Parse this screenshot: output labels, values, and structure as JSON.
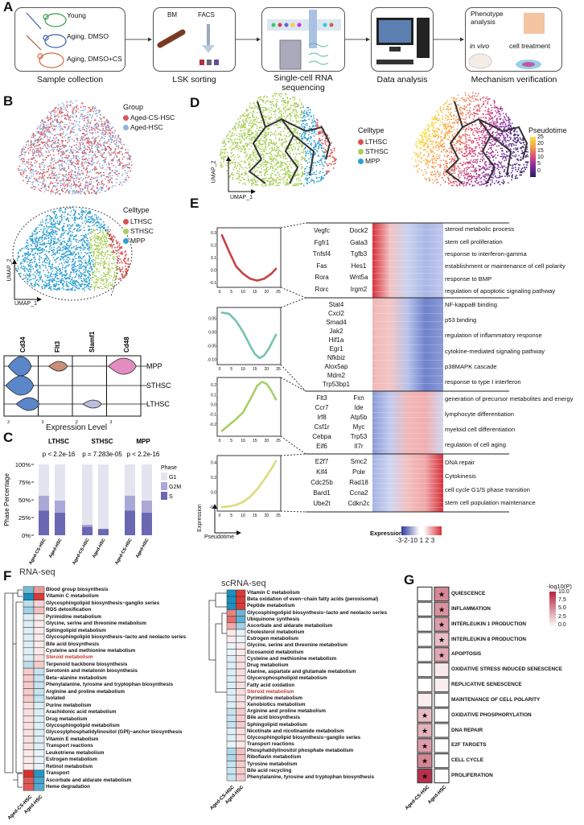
{
  "panel_labels": {
    "A": "A",
    "B": "B",
    "C": "C",
    "D": "D",
    "E": "E",
    "F": "F",
    "G": "G"
  },
  "workflow": {
    "steps": [
      {
        "label": "Sample collection",
        "groups": [
          "Young",
          "Aging, DMSO",
          "Aging, DMSO+CS"
        ]
      },
      {
        "label": "LSK sorting",
        "tags": [
          "BM",
          "FACS"
        ]
      },
      {
        "label": "Single-cell RNA sequencing"
      },
      {
        "label": "Data analysis"
      },
      {
        "label": "Mechanism verification",
        "tags": [
          "Phenotype analysis",
          "in vivo",
          "cell treatment"
        ]
      }
    ]
  },
  "umap_group": {
    "legend_title": "Group",
    "items": [
      {
        "label": "Aged-CS-HSC",
        "color": "#d9585b"
      },
      {
        "label": "Aged-HSC",
        "color": "#8fb2e0"
      }
    ],
    "xlabel": "UMAP_1",
    "ylabel": "UMAP_2"
  },
  "umap_celltype": {
    "legend_title": "Celltype",
    "items": [
      {
        "label": "LTHSC",
        "color": "#d9534f"
      },
      {
        "label": "STHSC",
        "color": "#a9cf5a"
      },
      {
        "label": "MPP",
        "color": "#2e9fd0"
      }
    ],
    "xlabel": "UMAP_1",
    "ylabel": "UMAP_2"
  },
  "violin": {
    "genes": [
      "Cd34",
      "Flt3",
      "Slamf1",
      "Cd48"
    ],
    "celltypes": [
      "MPP",
      "STHSC",
      "LTHSC"
    ],
    "tick_labels": [
      "3",
      "3",
      "2",
      "3"
    ],
    "xlabel": "Expression Level",
    "colors": [
      "#5b86c9",
      "#c98f7a",
      "#b9bfdc",
      "#e38cbf"
    ]
  },
  "trajectory": {
    "celltype_legend_title": "Celltype",
    "celltypes": [
      {
        "label": "LTHSC",
        "color": "#d9534f"
      },
      {
        "label": "STHSC",
        "color": "#a9cf5a"
      },
      {
        "label": "MPP",
        "color": "#2e9fd0"
      }
    ],
    "pseudotime_title": "Pseudotime",
    "pseudotime_ticks": [
      "25",
      "20",
      "15",
      "10",
      "5",
      "0"
    ],
    "xlabel": "UMAP_1",
    "ylabel": "UMAP_2"
  },
  "trajectory_heatmap": {
    "clusters": [
      {
        "genes": [
          "Vegfc",
          "Dock2",
          "Fgfr1",
          "Gata3",
          "Tnfsf4",
          "Tgfb3",
          "Fas",
          "Hes1",
          "Rora",
          "Wnt5a",
          "Rorc",
          "Irgm2"
        ],
        "columns": 2,
        "terms": [
          "steroid metabolic process",
          "stem cell proliferation",
          "response to interferon-gamma",
          "establishment or maintenance of cell polarity",
          "response to BMP",
          "regulation of apoptotic signaling pathway"
        ]
      },
      {
        "genes": [
          "Stat4",
          "Cxcl2",
          "Smad4",
          "Jak2",
          "Hif1a",
          "Egr1",
          "Nfkbiz",
          "Alox5ap",
          "Mdm2",
          "Trp53bp1"
        ],
        "columns": 1,
        "terms": [
          "NF-kappaB binding",
          "p53 binding",
          "regulation of inflammatory response",
          "cytokine-mediated signaling pathway",
          "p38MAPK cascade",
          "response to type I interferon"
        ]
      },
      {
        "genes": [
          "Flt3",
          "Fxn",
          "Ccr7",
          "Ide",
          "Irf8",
          "Atp5b",
          "Csf1r",
          "Myc",
          "Cebpa",
          "Trp53",
          "Eif6",
          "Il7r"
        ],
        "columns": 2,
        "terms": [
          "generation of precursor metabolites and energy",
          "lymphocyte differentiation",
          "myeloid cell differentiation",
          "regulation of cell aging"
        ]
      },
      {
        "genes": [
          "E2f7",
          "Smc2",
          "Kif4",
          "Pole",
          "Cdc25b",
          "Rad18",
          "Bard1",
          "Ccna2",
          "Ube2t",
          "Cdkn2c"
        ],
        "columns": 2,
        "terms": [
          "DNA repair",
          "Cytokinesis",
          "cell cycle G1/S phase transition",
          "stem cell population maintenance"
        ]
      }
    ],
    "colorbar": {
      "title": "Expression",
      "labels": "-3-2-10 1 2 3",
      "low": "#2b3a9c",
      "mid": "#ffffff",
      "high": "#d7303a"
    },
    "xlabel": "Pseudotime",
    "ylabel": "Expression"
  },
  "chart_data": [
    {
      "id": "C",
      "type": "bar",
      "stacked": true,
      "ylabel": "Phase Percentage",
      "ylim": [
        0,
        100
      ],
      "yticks": [
        "0%",
        "25%",
        "50%",
        "75%",
        "100%"
      ],
      "facets": [
        {
          "title": "LTHSC",
          "pvalue": "p < 2.2e-16"
        },
        {
          "title": "STHSC",
          "pvalue": "p = 7.283e-05"
        },
        {
          "title": "MPP",
          "pvalue": "p < 2.2e-16"
        }
      ],
      "categories": [
        "Aged-CS-HSC",
        "Aged-HSC"
      ],
      "legend_title": "Phase",
      "series": [
        {
          "name": "S",
          "color": "#6a68b3",
          "values": [
            [
              35,
              32
            ],
            [
              12,
              9
            ],
            [
              35,
              32
            ]
          ]
        },
        {
          "name": "G2M",
          "color": "#a9a8d6",
          "values": [
            [
              21,
              17
            ],
            [
              3,
              0
            ],
            [
              21,
              17
            ]
          ]
        },
        {
          "name": "G1",
          "color": "#e4e4f1",
          "values": [
            [
              44,
              51
            ],
            [
              85,
              91
            ],
            [
              44,
              51
            ]
          ]
        }
      ]
    },
    {
      "id": "E1",
      "type": "line",
      "color": "#c9413e",
      "xlim": [
        0,
        25
      ],
      "xticks": [
        "0",
        "5",
        "10",
        "15",
        "20",
        "25"
      ],
      "ylim": [
        -0.12,
        0.32
      ],
      "yticks": [
        "-0.1",
        "0.0",
        "0.1",
        "0.2",
        "0.3"
      ],
      "x": [
        1,
        4,
        7,
        10,
        13,
        16,
        19,
        22,
        24
      ],
      "y": [
        0.28,
        0.15,
        0.03,
        -0.03,
        -0.07,
        -0.085,
        -0.07,
        -0.03,
        0.01
      ]
    },
    {
      "id": "E2",
      "type": "line",
      "color": "#76c2b0",
      "xlim": [
        0,
        25
      ],
      "xticks": [
        "0",
        "5",
        "10",
        "15",
        "20",
        "25"
      ],
      "ylim": [
        -0.11,
        0.08
      ],
      "yticks": [
        "-0.10",
        "-0.05",
        "0.00",
        "0.05"
      ],
      "x": [
        1,
        4,
        7,
        10,
        13,
        15,
        17,
        19,
        21,
        24
      ],
      "y": [
        0.07,
        0.066,
        0.04,
        0.0,
        -0.05,
        -0.08,
        -0.095,
        -0.085,
        -0.06,
        -0.01
      ]
    },
    {
      "id": "E3",
      "type": "line",
      "color": "#a6cf67",
      "xlim": [
        0,
        25
      ],
      "xticks": [
        "0",
        "5",
        "10",
        "15",
        "20",
        "25"
      ],
      "ylim": [
        -0.3,
        0.25
      ],
      "yticks": [
        "-0.2",
        "-0.1",
        "0.0",
        "0.1",
        "0.2"
      ],
      "x": [
        1,
        4,
        7,
        10,
        13,
        16,
        18,
        20,
        22,
        24
      ],
      "y": [
        -0.27,
        -0.21,
        -0.15,
        -0.08,
        0.05,
        0.19,
        0.23,
        0.21,
        0.14,
        0.05
      ]
    },
    {
      "id": "E4",
      "type": "line",
      "color": "#dcdc7a",
      "xlim": [
        0,
        25
      ],
      "xticks": [
        "0",
        "5",
        "10",
        "15",
        "20",
        "25"
      ],
      "ylim": [
        -0.22,
        0.46
      ],
      "yticks": [
        "-0.2",
        "0.0",
        "0.2",
        "0.4"
      ],
      "x": [
        1,
        4,
        7,
        10,
        13,
        16,
        19,
        22,
        24
      ],
      "y": [
        -0.2,
        -0.19,
        -0.17,
        -0.13,
        -0.06,
        0.04,
        0.17,
        0.31,
        0.42
      ]
    },
    {
      "id": "F1",
      "type": "heatmap",
      "title": "RNA-seq",
      "columns": [
        "Aged-CS-HSC",
        "Aged-HSC"
      ],
      "scale": {
        "low": "#1b8fbf",
        "mid": "#ffffff",
        "high": "#d7302d",
        "range": [
          -2,
          2
        ]
      },
      "rows": [
        "Blood group biosynthesis",
        "Vitamin C metabolism",
        "Glycosphingolipid biosynthesis−ganglio series",
        "ROS detoxification",
        "Pyrimidine metabolism",
        "Glycine, serine and threonine metabolism",
        "Sphingolipid metabolism",
        "Glycosphingolipid biosynthesis−lacto and neolacto series",
        "Bile acid biosynthesis",
        "Cysteine and methionine metabolism",
        "Steroid metabolism",
        "Terpenoid backbone biosynthesis",
        "Serotonin and melatonin biosynthesis",
        "Beta−alanine metabolism",
        "Phenylalanine, tyrosine and tryptophan biosynthesis",
        "Arginine and proline metabolism",
        "Isolated",
        "Purine metabolism",
        "Arachidonic acid metabolism",
        "Drug metabolism",
        "Glycosphingolipid metabolism",
        "Glycosylphosphatidylinositol (GPI)−anchor biosynthesis",
        "Vitamin E metabolism",
        "Transport reactions",
        "Leukotriene metabolism",
        "Estrogen metabolism",
        "Retinol metabolism",
        "Transport",
        "Ascorbate and aldarate metabolism",
        "Heme degradation"
      ],
      "highlight": [
        "Steroid metabolism"
      ],
      "values": [
        [
          -1.2,
          1.0
        ],
        [
          -2,
          1.9
        ],
        [
          -0.6,
          0.4
        ],
        [
          -0.8,
          0.6
        ],
        [
          -0.3,
          0.2
        ],
        [
          -0.3,
          0.2
        ],
        [
          -0.3,
          0.2
        ],
        [
          -0.3,
          0.2
        ],
        [
          -0.3,
          0.2
        ],
        [
          -0.3,
          0.2
        ],
        [
          -0.3,
          0.3
        ],
        [
          -0.6,
          0.5
        ],
        [
          0.5,
          -0.5
        ],
        [
          0.5,
          -0.5
        ],
        [
          0.5,
          -0.5
        ],
        [
          0.5,
          -0.5
        ],
        [
          0.5,
          -0.5
        ],
        [
          0.3,
          -0.3
        ],
        [
          0.3,
          -0.3
        ],
        [
          0.3,
          -0.3
        ],
        [
          0.3,
          -0.3
        ],
        [
          0.3,
          -0.3
        ],
        [
          0.3,
          -0.3
        ],
        [
          0.3,
          -0.3
        ],
        [
          0.2,
          -0.2
        ],
        [
          0.2,
          -0.2
        ],
        [
          0.2,
          -0.2
        ],
        [
          2,
          -1.9
        ],
        [
          1.6,
          -1.6
        ],
        [
          1.6,
          -1.5
        ]
      ]
    },
    {
      "id": "F2",
      "type": "heatmap",
      "title": "scRNA-seq",
      "columns": [
        "Aged-CS-HSC",
        "Aged-HSC"
      ],
      "scale": {
        "low": "#1b8fbf",
        "mid": "#ffffff",
        "high": "#d7302d",
        "range": [
          -2,
          2
        ]
      },
      "rows": [
        "Vitamin C metabolism",
        "Beta oxidation of even−chain fatty acids (peroxisomal)",
        "Peptide metabolism",
        "Glycosphingolipid biosynthesis−lacto and neolacto series",
        "Ubiquinone synthesis",
        "Ascorbate and aldarate metabolism",
        "Cholesterol metabolism",
        "Estrogen metabolism",
        "Glycine, serine and threonine metabolism",
        "Eicosanoid metabolism",
        "Cysteine and methionine metabolism",
        "Drug metabolism",
        "Alanine, aspartate and glutamate metabolism",
        "Glycerophospholipid metabolism",
        "Fatty acid oxidation",
        "Steroid metabolism",
        "Pyrimidine metabolism",
        "Xenobiotics metabolism",
        "Arginine and proline metabolism",
        "Bile acid biosynthesis",
        "Sphingolipid metabolism",
        "Nicotinate and nicotinamide metabolism",
        "Glycosphingolipid biosynthesis−ganglio series",
        "Transport reactions",
        "Phosphatidylinositol phosphate metabolism",
        "Riboflavin metabolism",
        "Tyrosine metabolism",
        "Bile acid recycling",
        "Phenylalanine, tyrosine and tryptophan biosynthesis"
      ],
      "highlight": [
        "Steroid metabolism"
      ],
      "values": [
        [
          -2,
          1.9
        ],
        [
          -2,
          1.9
        ],
        [
          -2,
          1.9
        ],
        [
          1.2,
          -1.3
        ],
        [
          1.4,
          -1.4
        ],
        [
          0.8,
          -0.8
        ],
        [
          0.2,
          -0.2
        ],
        [
          0.2,
          -0.2
        ],
        [
          -0.2,
          0.2
        ],
        [
          -0.2,
          0.2
        ],
        [
          -0.3,
          0.3
        ],
        [
          -0.3,
          0.3
        ],
        [
          -0.3,
          0.3
        ],
        [
          -0.3,
          0.3
        ],
        [
          -0.3,
          0.3
        ],
        [
          -0.3,
          0.3
        ],
        [
          -0.3,
          0.3
        ],
        [
          -0.3,
          0.3
        ],
        [
          -0.5,
          0.5
        ],
        [
          -0.5,
          0.5
        ],
        [
          -0.5,
          0.5
        ],
        [
          -0.3,
          0.3
        ],
        [
          -0.3,
          0.3
        ],
        [
          -0.2,
          0.2
        ],
        [
          -0.7,
          0.6
        ],
        [
          -0.7,
          0.6
        ],
        [
          -0.5,
          0.5
        ],
        [
          -0.5,
          0.5
        ],
        [
          -0.5,
          0.5
        ]
      ]
    },
    {
      "id": "G",
      "type": "heatmap",
      "columns": [
        "Aged-CS-HSC",
        "Aged-HSC"
      ],
      "legend_title": "-log10(P)",
      "legend_ticks": [
        "10.0",
        "7.5",
        "5.0",
        "2.5",
        "0.0"
      ],
      "range": [
        0,
        10
      ],
      "scale": {
        "low": "#ffffff",
        "high": "#b3243f"
      },
      "rows": [
        "QUIESCENCE",
        "INFLAMMATION",
        "INTERLEUKIN 1 PRODUCTION",
        "INTERLEUKIN 8 PRODUCTION",
        "APOPTOSIS",
        "OXIDATIVE STRESS INDUCED SENESCENCE",
        "REPLICATIVE SENESCENCE",
        "MAINTENANCE OF CELL POLARITY",
        "OXIDATIVE PHOSPHORYLATION",
        "DNA REPAIR",
        "E2F TARGETS",
        "CELL CYCLE",
        "PROLIFERATION"
      ],
      "values": [
        [
          0,
          5.5
        ],
        [
          0,
          5
        ],
        [
          0,
          4.5
        ],
        [
          0,
          3
        ],
        [
          0,
          4
        ],
        [
          0,
          1
        ],
        [
          0,
          0.8
        ],
        [
          0.8,
          0
        ],
        [
          3,
          0
        ],
        [
          3.5,
          0
        ],
        [
          4.5,
          0
        ],
        [
          5.5,
          0
        ],
        [
          9.5,
          0
        ]
      ],
      "significant": [
        [
          false,
          true
        ],
        [
          false,
          true
        ],
        [
          false,
          true
        ],
        [
          false,
          true
        ],
        [
          false,
          true
        ],
        [
          false,
          false
        ],
        [
          false,
          false
        ],
        [
          false,
          false
        ],
        [
          true,
          false
        ],
        [
          true,
          false
        ],
        [
          true,
          false
        ],
        [
          true,
          false
        ],
        [
          true,
          false
        ]
      ],
      "star": "★"
    }
  ]
}
